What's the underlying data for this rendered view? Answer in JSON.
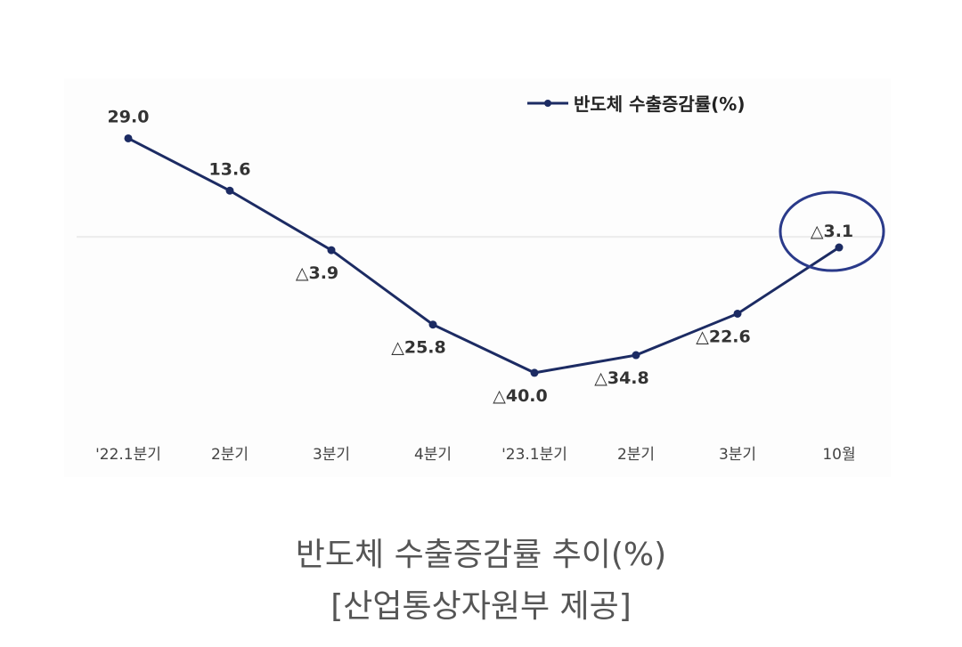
{
  "chart_data": {
    "type": "line",
    "categories": [
      "'22.1분기",
      "2분기",
      "3분기",
      "4분기",
      "'23.1분기",
      "2분기",
      "3분기",
      "10월"
    ],
    "series": [
      {
        "name": "반도체 수출증감률(%)",
        "values": [
          29.0,
          13.6,
          -3.9,
          -25.8,
          -40.0,
          -34.8,
          -22.6,
          -3.1
        ],
        "labels": [
          "29.0",
          "13.6",
          "△3.9",
          "△25.8",
          "△40.0",
          "△34.8",
          "△22.6",
          "△3.1"
        ]
      }
    ],
    "title": "",
    "xlabel": "",
    "ylabel": "",
    "ylim": [
      -45,
      32
    ],
    "grid": false,
    "reference_line": 0,
    "legend": "top-right",
    "highlight_index": 7,
    "line_color": "#1c2b63",
    "highlight_color": "#2a3a8a"
  },
  "caption": {
    "title": "반도체 수출증감률 추이(%)",
    "source": "[산업통상자원부 제공]"
  }
}
